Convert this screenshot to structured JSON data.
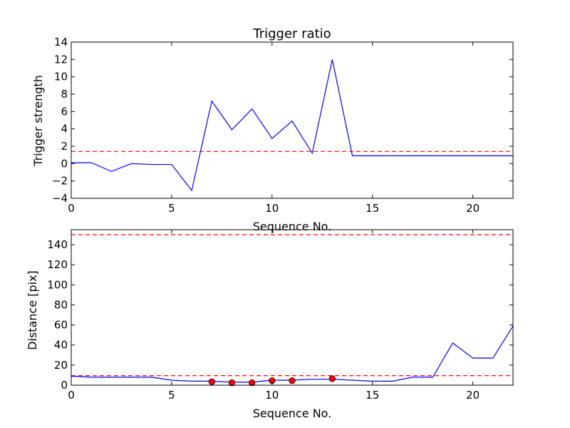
{
  "chart_data": [
    {
      "type": "line",
      "title": "Trigger ratio",
      "xlabel": "Sequence No.",
      "ylabel": "Trigger strength",
      "xlim": [
        0,
        22
      ],
      "ylim": [
        -4,
        14
      ],
      "xticks": [
        "0",
        "5",
        "10",
        "15",
        "20"
      ],
      "yticks": [
        "−4",
        "−2",
        "0",
        "2",
        "4",
        "6",
        "8",
        "10",
        "12",
        "14"
      ],
      "grid": false,
      "series": [
        {
          "color": "#0000ff",
          "x": [
            0,
            1,
            2,
            3,
            4,
            5,
            6,
            7,
            8,
            9,
            10,
            11,
            12,
            13,
            14,
            15,
            16,
            17,
            18,
            19,
            20,
            21,
            22
          ],
          "y": [
            0.1,
            0.1,
            -0.9,
            0.0,
            -0.1,
            -0.1,
            -3.1,
            7.2,
            3.9,
            6.3,
            2.9,
            4.9,
            1.2,
            12.0,
            0.9,
            0.9,
            0.9,
            0.9,
            0.9,
            0.9,
            0.9,
            0.9,
            0.9
          ]
        }
      ],
      "hlines": [
        {
          "y": 1.4,
          "color": "#ff0000",
          "style": "dashed"
        }
      ]
    },
    {
      "type": "line",
      "title": "",
      "xlabel": "Sequence No.",
      "ylabel": "Distance [pix]",
      "xlim": [
        0,
        22
      ],
      "ylim": [
        0,
        155
      ],
      "xticks": [
        "0",
        "5",
        "10",
        "15",
        "20"
      ],
      "yticks": [
        "0",
        "20",
        "40",
        "60",
        "80",
        "100",
        "120",
        "140"
      ],
      "grid": false,
      "series": [
        {
          "color": "#0000ff",
          "x": [
            0,
            1,
            2,
            3,
            4,
            5,
            6,
            7,
            8,
            9,
            10,
            11,
            12,
            13,
            14,
            15,
            16,
            17,
            18,
            19,
            20,
            21,
            22
          ],
          "y": [
            9,
            8,
            8,
            8,
            8,
            5,
            4,
            4,
            3,
            3,
            5,
            5,
            6,
            6,
            5,
            4,
            4,
            8,
            8,
            42,
            27,
            27,
            59
          ]
        }
      ],
      "markers": {
        "color": "#ff0000",
        "x": [
          7,
          8,
          9,
          10,
          11,
          13
        ],
        "y": [
          3.5,
          2.5,
          2.5,
          4.5,
          4.5,
          6.5
        ]
      },
      "hlines": [
        {
          "y": 150,
          "color": "#ff0000",
          "style": "dashed"
        },
        {
          "y": 9.5,
          "color": "#ff0000",
          "style": "dashed"
        }
      ]
    }
  ]
}
